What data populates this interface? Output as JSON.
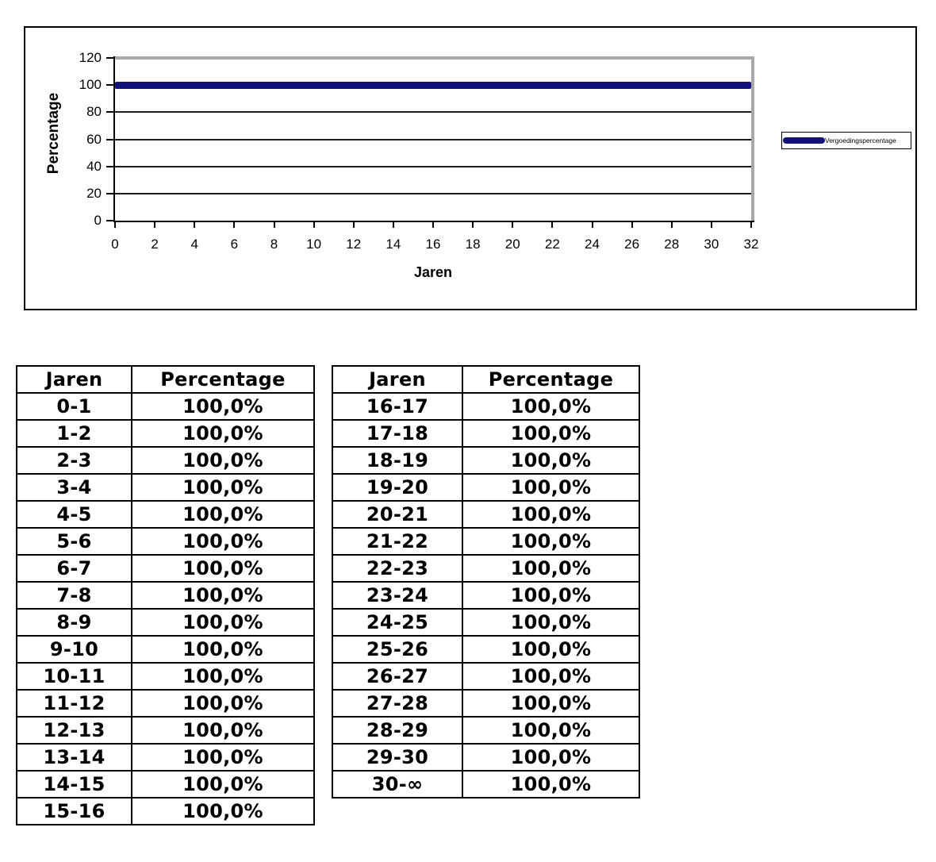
{
  "chart": {
    "ylabel": "Percentage",
    "xlabel": "Jaren",
    "legend_label": "Vergoedingspercentage",
    "series_color": "#12127c"
  },
  "chart_data": {
    "type": "line",
    "title": "",
    "xlabel": "Jaren",
    "ylabel": "Percentage",
    "xlim": [
      0,
      32
    ],
    "ylim": [
      0,
      120
    ],
    "x_ticks": [
      0,
      2,
      4,
      6,
      8,
      10,
      12,
      14,
      16,
      18,
      20,
      22,
      24,
      26,
      28,
      30,
      32
    ],
    "y_ticks": [
      0,
      20,
      40,
      60,
      80,
      100,
      120
    ],
    "grid": true,
    "legend_position": "right",
    "series": [
      {
        "name": "Vergoedingspercentage",
        "color": "#12127c",
        "x": [
          0,
          32
        ],
        "y": [
          100,
          100
        ]
      }
    ]
  },
  "tables": {
    "left": {
      "headers": [
        "Jaren",
        "Percentage"
      ],
      "rows": [
        [
          "0-1",
          "100,0%"
        ],
        [
          "1-2",
          "100,0%"
        ],
        [
          "2-3",
          "100,0%"
        ],
        [
          "3-4",
          "100,0%"
        ],
        [
          "4-5",
          "100,0%"
        ],
        [
          "5-6",
          "100,0%"
        ],
        [
          "6-7",
          "100,0%"
        ],
        [
          "7-8",
          "100,0%"
        ],
        [
          "8-9",
          "100,0%"
        ],
        [
          "9-10",
          "100,0%"
        ],
        [
          "10-11",
          "100,0%"
        ],
        [
          "11-12",
          "100,0%"
        ],
        [
          "12-13",
          "100,0%"
        ],
        [
          "13-14",
          "100,0%"
        ],
        [
          "14-15",
          "100,0%"
        ],
        [
          "15-16",
          "100,0%"
        ]
      ]
    },
    "right": {
      "headers": [
        "Jaren",
        "Percentage"
      ],
      "rows": [
        [
          "16-17",
          "100,0%"
        ],
        [
          "17-18",
          "100,0%"
        ],
        [
          "18-19",
          "100,0%"
        ],
        [
          "19-20",
          "100,0%"
        ],
        [
          "20-21",
          "100,0%"
        ],
        [
          "21-22",
          "100,0%"
        ],
        [
          "22-23",
          "100,0%"
        ],
        [
          "23-24",
          "100,0%"
        ],
        [
          "24-25",
          "100,0%"
        ],
        [
          "25-26",
          "100,0%"
        ],
        [
          "26-27",
          "100,0%"
        ],
        [
          "27-28",
          "100,0%"
        ],
        [
          "28-29",
          "100,0%"
        ],
        [
          "29-30",
          "100,0%"
        ],
        [
          "30-∞",
          "100,0%"
        ]
      ]
    }
  }
}
